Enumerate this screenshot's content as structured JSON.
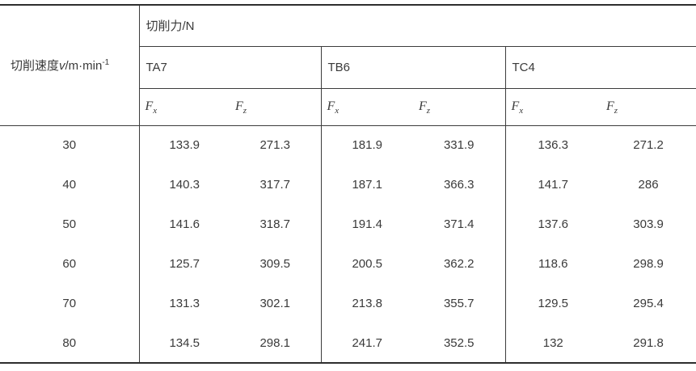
{
  "table": {
    "speed_header": {
      "prefix": "切削速度",
      "variable": "v",
      "unit": "/m·min",
      "exponent": "-1"
    },
    "force_header": "切削力/N",
    "materials": [
      "TA7",
      "TB6",
      "TC4"
    ],
    "component_symbol": "F",
    "component_subscripts": {
      "x": "x",
      "z": "z"
    },
    "rows": [
      [
        "30",
        "133.9",
        "271.3",
        "181.9",
        "331.9",
        "136.3",
        "271.2"
      ],
      [
        "40",
        "140.3",
        "317.7",
        "187.1",
        "366.3",
        "141.7",
        "286"
      ],
      [
        "50",
        "141.6",
        "318.7",
        "191.4",
        "371.4",
        "137.6",
        "303.9"
      ],
      [
        "60",
        "125.7",
        "309.5",
        "200.5",
        "362.2",
        "118.6",
        "298.9"
      ],
      [
        "70",
        "131.3",
        "302.1",
        "213.8",
        "355.7",
        "129.5",
        "295.4"
      ],
      [
        "80",
        "134.5",
        "298.1",
        "241.7",
        "352.5",
        "132",
        "291.8"
      ]
    ],
    "colors": {
      "text": "#3a3a3a",
      "rule_heavy": "#2e2e2e",
      "rule_light": "#3c3c3c",
      "background": "#ffffff"
    }
  },
  "chart_data": {
    "type": "table",
    "title": "切削力/N",
    "row_header": "切削速度v/m·min-1",
    "column_groups": [
      "TA7",
      "TB6",
      "TC4"
    ],
    "sub_columns": [
      "Fx",
      "Fz"
    ],
    "x": [
      30,
      40,
      50,
      60,
      70,
      80
    ],
    "series": [
      {
        "name": "TA7 Fx",
        "values": [
          133.9,
          140.3,
          141.6,
          125.7,
          131.3,
          134.5
        ]
      },
      {
        "name": "TA7 Fz",
        "values": [
          271.3,
          317.7,
          318.7,
          309.5,
          302.1,
          298.1
        ]
      },
      {
        "name": "TB6 Fx",
        "values": [
          181.9,
          187.1,
          191.4,
          200.5,
          213.8,
          241.7
        ]
      },
      {
        "name": "TB6 Fz",
        "values": [
          331.9,
          366.3,
          371.4,
          362.2,
          355.7,
          352.5
        ]
      },
      {
        "name": "TC4 Fx",
        "values": [
          136.3,
          141.7,
          137.6,
          118.6,
          129.5,
          132
        ]
      },
      {
        "name": "TC4 Fz",
        "values": [
          271.2,
          286,
          303.9,
          298.9,
          295.4,
          291.8
        ]
      }
    ]
  }
}
